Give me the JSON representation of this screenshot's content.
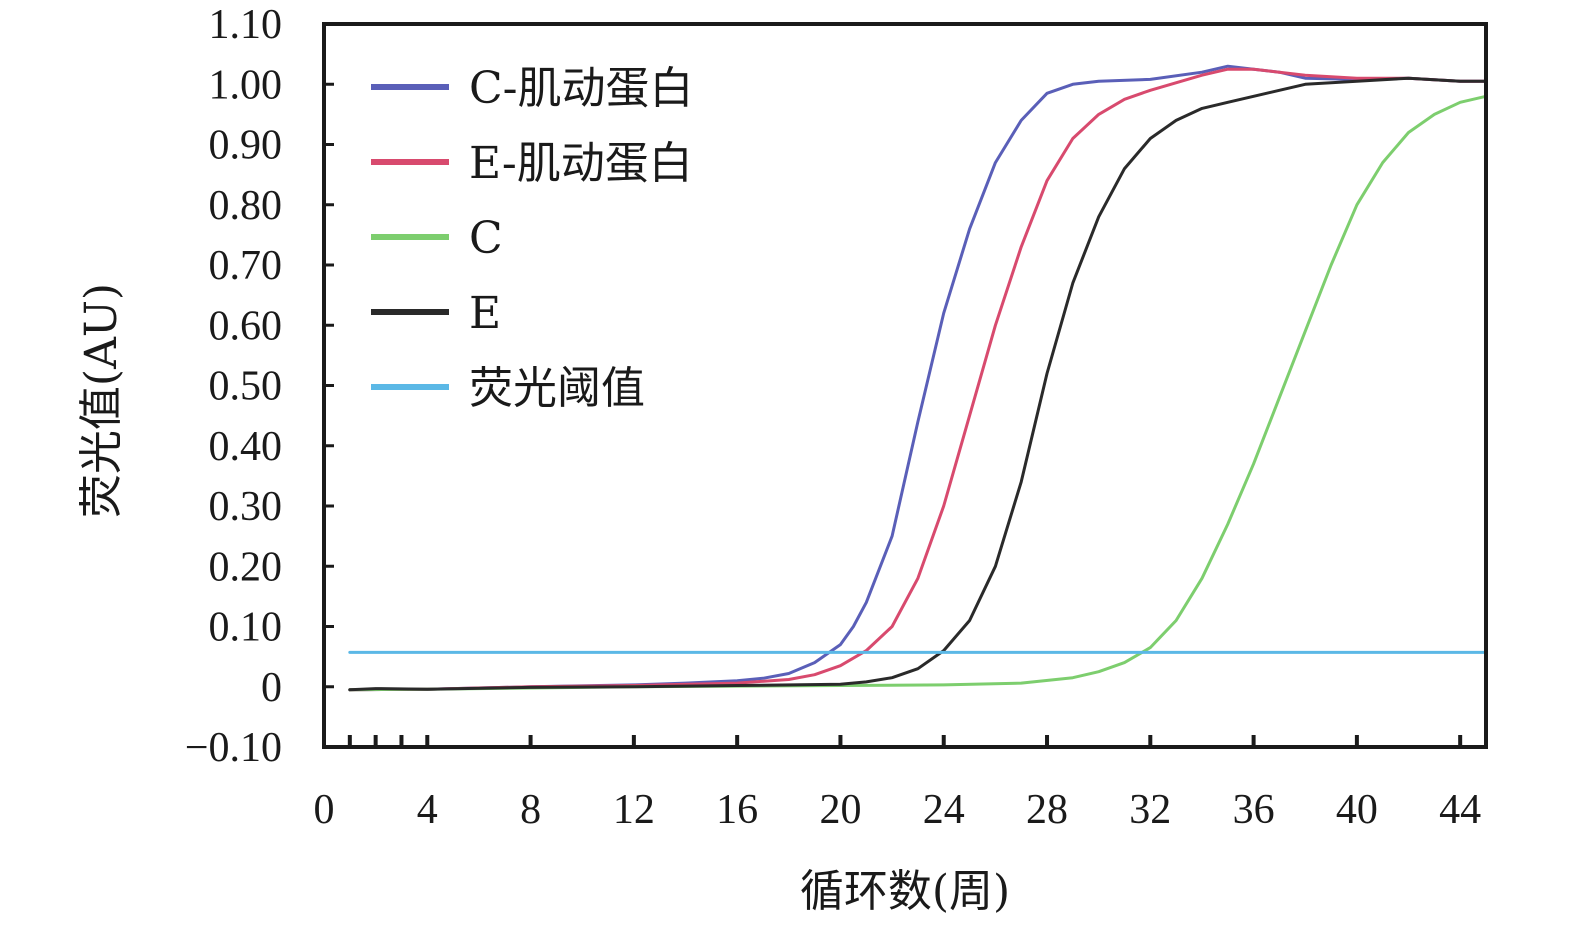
{
  "chart_data": {
    "type": "line",
    "xlabel": "循环数(周)",
    "ylabel": "荧光值(AU)",
    "xlim": [
      0,
      45
    ],
    "ylim": [
      -0.1,
      1.1
    ],
    "x_ticks": [
      0,
      4,
      8,
      12,
      16,
      20,
      24,
      28,
      32,
      36,
      40,
      44
    ],
    "x_tick_labels": [
      "0",
      "4",
      "8",
      "12",
      "16",
      "20",
      "24",
      "28",
      "32",
      "36",
      "40",
      "44"
    ],
    "y_ticks": [
      -0.1,
      0,
      0.1,
      0.2,
      0.3,
      0.4,
      0.5,
      0.6,
      0.7,
      0.8,
      0.9,
      1.0,
      1.1
    ],
    "y_tick_labels": [
      "−0.10",
      "0",
      "0.10",
      "0.20",
      "0.30",
      "0.40",
      "0.50",
      "0.60",
      "0.70",
      "0.80",
      "0.90",
      "1.00",
      "1.10"
    ],
    "grid": false,
    "legend_position": "top-left",
    "series": [
      {
        "name": "C-肌动蛋白",
        "color": "#5a5fb8",
        "points": [
          [
            1,
            -0.005
          ],
          [
            4,
            -0.004
          ],
          [
            8,
            0.0
          ],
          [
            12,
            0.003
          ],
          [
            14,
            0.006
          ],
          [
            16,
            0.01
          ],
          [
            17,
            0.014
          ],
          [
            18,
            0.022
          ],
          [
            19,
            0.04
          ],
          [
            20,
            0.07
          ],
          [
            20.5,
            0.1
          ],
          [
            21,
            0.14
          ],
          [
            22,
            0.25
          ],
          [
            23,
            0.44
          ],
          [
            24,
            0.62
          ],
          [
            25,
            0.76
          ],
          [
            26,
            0.87
          ],
          [
            27,
            0.94
          ],
          [
            28,
            0.985
          ],
          [
            29,
            1.0
          ],
          [
            30,
            1.005
          ],
          [
            32,
            1.008
          ],
          [
            34,
            1.02
          ],
          [
            35,
            1.03
          ],
          [
            36,
            1.025
          ],
          [
            37,
            1.02
          ],
          [
            38,
            1.01
          ],
          [
            40,
            1.008
          ],
          [
            42,
            1.01
          ],
          [
            44,
            1.005
          ],
          [
            45,
            1.005
          ]
        ]
      },
      {
        "name": "E-肌动蛋白",
        "color": "#d84a6e",
        "points": [
          [
            1,
            -0.005
          ],
          [
            4,
            -0.004
          ],
          [
            8,
            0.0
          ],
          [
            12,
            0.002
          ],
          [
            16,
            0.006
          ],
          [
            18,
            0.012
          ],
          [
            19,
            0.02
          ],
          [
            20,
            0.035
          ],
          [
            21,
            0.06
          ],
          [
            22,
            0.1
          ],
          [
            23,
            0.18
          ],
          [
            24,
            0.3
          ],
          [
            25,
            0.45
          ],
          [
            26,
            0.6
          ],
          [
            27,
            0.73
          ],
          [
            28,
            0.84
          ],
          [
            29,
            0.91
          ],
          [
            30,
            0.95
          ],
          [
            31,
            0.975
          ],
          [
            32,
            0.99
          ],
          [
            34,
            1.015
          ],
          [
            35,
            1.025
          ],
          [
            36,
            1.025
          ],
          [
            37,
            1.02
          ],
          [
            38,
            1.015
          ],
          [
            40,
            1.01
          ],
          [
            42,
            1.01
          ],
          [
            44,
            1.005
          ],
          [
            45,
            1.005
          ]
        ]
      },
      {
        "name": "C",
        "color": "#7dce6e",
        "points": [
          [
            1,
            -0.005
          ],
          [
            4,
            -0.004
          ],
          [
            8,
            -0.002
          ],
          [
            12,
            0.0
          ],
          [
            16,
            0.001
          ],
          [
            20,
            0.002
          ],
          [
            24,
            0.003
          ],
          [
            27,
            0.006
          ],
          [
            29,
            0.015
          ],
          [
            30,
            0.025
          ],
          [
            31,
            0.04
          ],
          [
            32,
            0.065
          ],
          [
            33,
            0.11
          ],
          [
            34,
            0.18
          ],
          [
            35,
            0.27
          ],
          [
            36,
            0.37
          ],
          [
            37,
            0.48
          ],
          [
            38,
            0.59
          ],
          [
            39,
            0.7
          ],
          [
            40,
            0.8
          ],
          [
            41,
            0.87
          ],
          [
            42,
            0.92
          ],
          [
            43,
            0.95
          ],
          [
            44,
            0.97
          ],
          [
            45,
            0.98
          ]
        ]
      },
      {
        "name": "E",
        "color": "#2a2a2a",
        "points": [
          [
            1,
            -0.005
          ],
          [
            2,
            -0.003
          ],
          [
            4,
            -0.004
          ],
          [
            8,
            -0.001
          ],
          [
            12,
            0.0
          ],
          [
            16,
            0.002
          ],
          [
            20,
            0.004
          ],
          [
            21,
            0.008
          ],
          [
            22,
            0.015
          ],
          [
            23,
            0.03
          ],
          [
            24,
            0.06
          ],
          [
            25,
            0.11
          ],
          [
            26,
            0.2
          ],
          [
            27,
            0.34
          ],
          [
            28,
            0.52
          ],
          [
            29,
            0.67
          ],
          [
            30,
            0.78
          ],
          [
            31,
            0.86
          ],
          [
            32,
            0.91
          ],
          [
            33,
            0.94
          ],
          [
            34,
            0.96
          ],
          [
            35,
            0.97
          ],
          [
            36,
            0.98
          ],
          [
            37,
            0.99
          ],
          [
            38,
            1.0
          ],
          [
            40,
            1.005
          ],
          [
            42,
            1.01
          ],
          [
            44,
            1.005
          ],
          [
            45,
            1.005
          ]
        ]
      },
      {
        "name": "荧光阈值",
        "color": "#5bb8e6",
        "points": [
          [
            1,
            0.057
          ],
          [
            45,
            0.057
          ]
        ]
      }
    ]
  }
}
